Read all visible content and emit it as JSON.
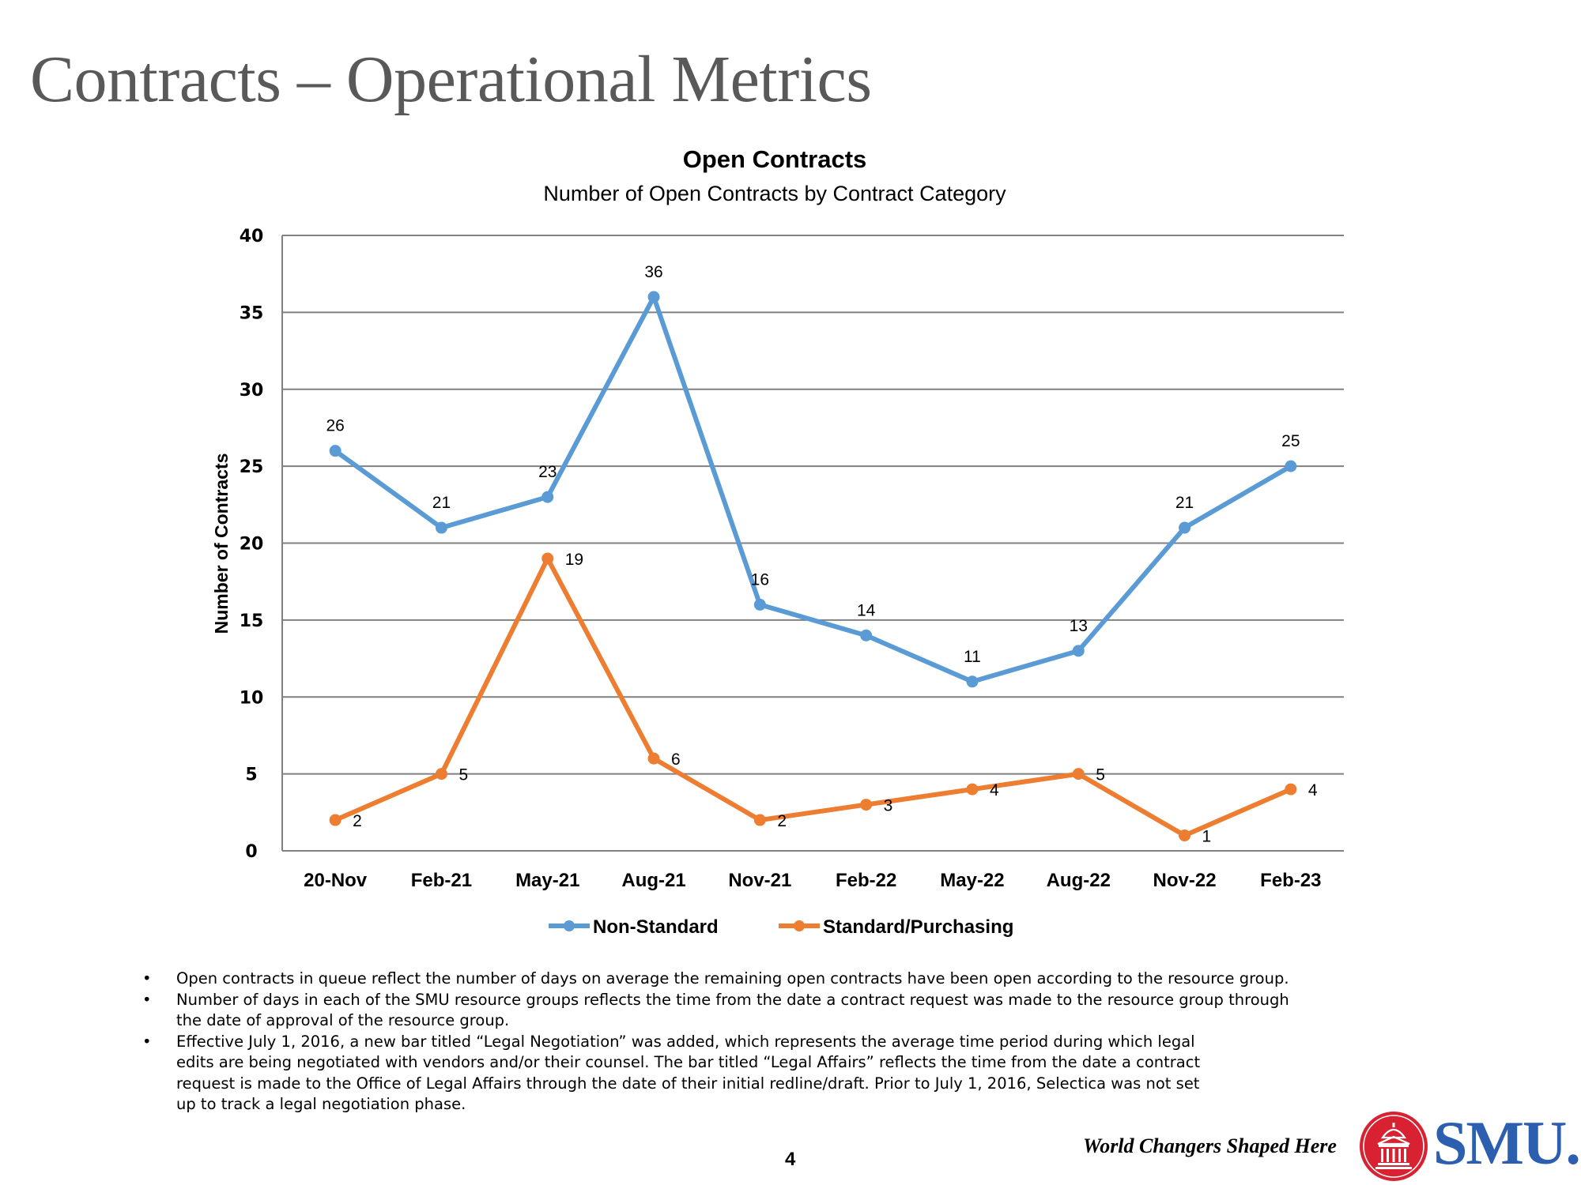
{
  "slide": {
    "title": "Contracts – Operational Metrics",
    "page_number": "4",
    "tagline": "World Changers Shaped Here",
    "logo_text": "SMU.",
    "logo_icon": "university-seal-icon"
  },
  "notes": [
    "Open contracts in queue reflect the number of days on average the remaining open contracts have been open according to the resource group.",
    "Number of days in each of the SMU resource groups reflects the time from the date a contract request was made to the resource group through the date of approval of the resource group.",
    "Effective July 1, 2016, a new bar titled “Legal Negotiation” was added, which represents the average time period during which legal edits are being negotiated with vendors and/or their counsel.  The bar titled “Legal Affairs” reflects the time from the date a contract request is made to the Office of Legal Affairs through the date of their initial redline/draft.  Prior to July 1, 2016, Selectica was not set up to track a legal negotiation phase."
  ],
  "notes_lines": [
    [
      "Open contracts in queue reflect the number of days on average the remaining open contracts have been open according to the resource group."
    ],
    [
      "Number of days in each of the SMU resource groups reflects the time from the date a contract request was made to the resource group through",
      "the date of approval of the resource group."
    ],
    [
      "Effective July 1, 2016, a new bar titled “Legal Negotiation” was added, which represents the average time period during which legal",
      "edits are being negotiated with vendors and/or their counsel.  The bar titled “Legal Affairs” reflects the time from the date a contract",
      "request is made to the Office of Legal Affairs through the date of their initial redline/draft.  Prior to July 1, 2016, Selectica was not set",
      "up to track a legal negotiation phase."
    ]
  ],
  "bullet_glyph": "•",
  "chart_data": {
    "type": "line",
    "title": "Open Contracts",
    "subtitle": "Number of Open Contracts by Contract Category",
    "xlabel": "",
    "ylabel": "Number of Contracts",
    "categories": [
      "20-Nov",
      "Feb-21",
      "May-21",
      "Aug-21",
      "Nov-21",
      "Feb-22",
      "May-22",
      "Aug-22",
      "Nov-22",
      "Feb-23"
    ],
    "ylim": [
      0,
      40
    ],
    "yticks": [
      0,
      5,
      10,
      15,
      20,
      25,
      30,
      35,
      40
    ],
    "grid": true,
    "legend_position": "bottom",
    "data_labels": true,
    "series": [
      {
        "name": "Non-Standard",
        "color": "#5b9bd5",
        "marker": "circle",
        "label_position": "above",
        "values": [
          26,
          21,
          23,
          36,
          16,
          14,
          11,
          13,
          21,
          25
        ]
      },
      {
        "name": "Standard/Purchasing",
        "color": "#ed7d31",
        "marker": "circle",
        "label_position": "right",
        "values": [
          2,
          5,
          19,
          6,
          2,
          3,
          4,
          5,
          1,
          4
        ]
      }
    ]
  }
}
